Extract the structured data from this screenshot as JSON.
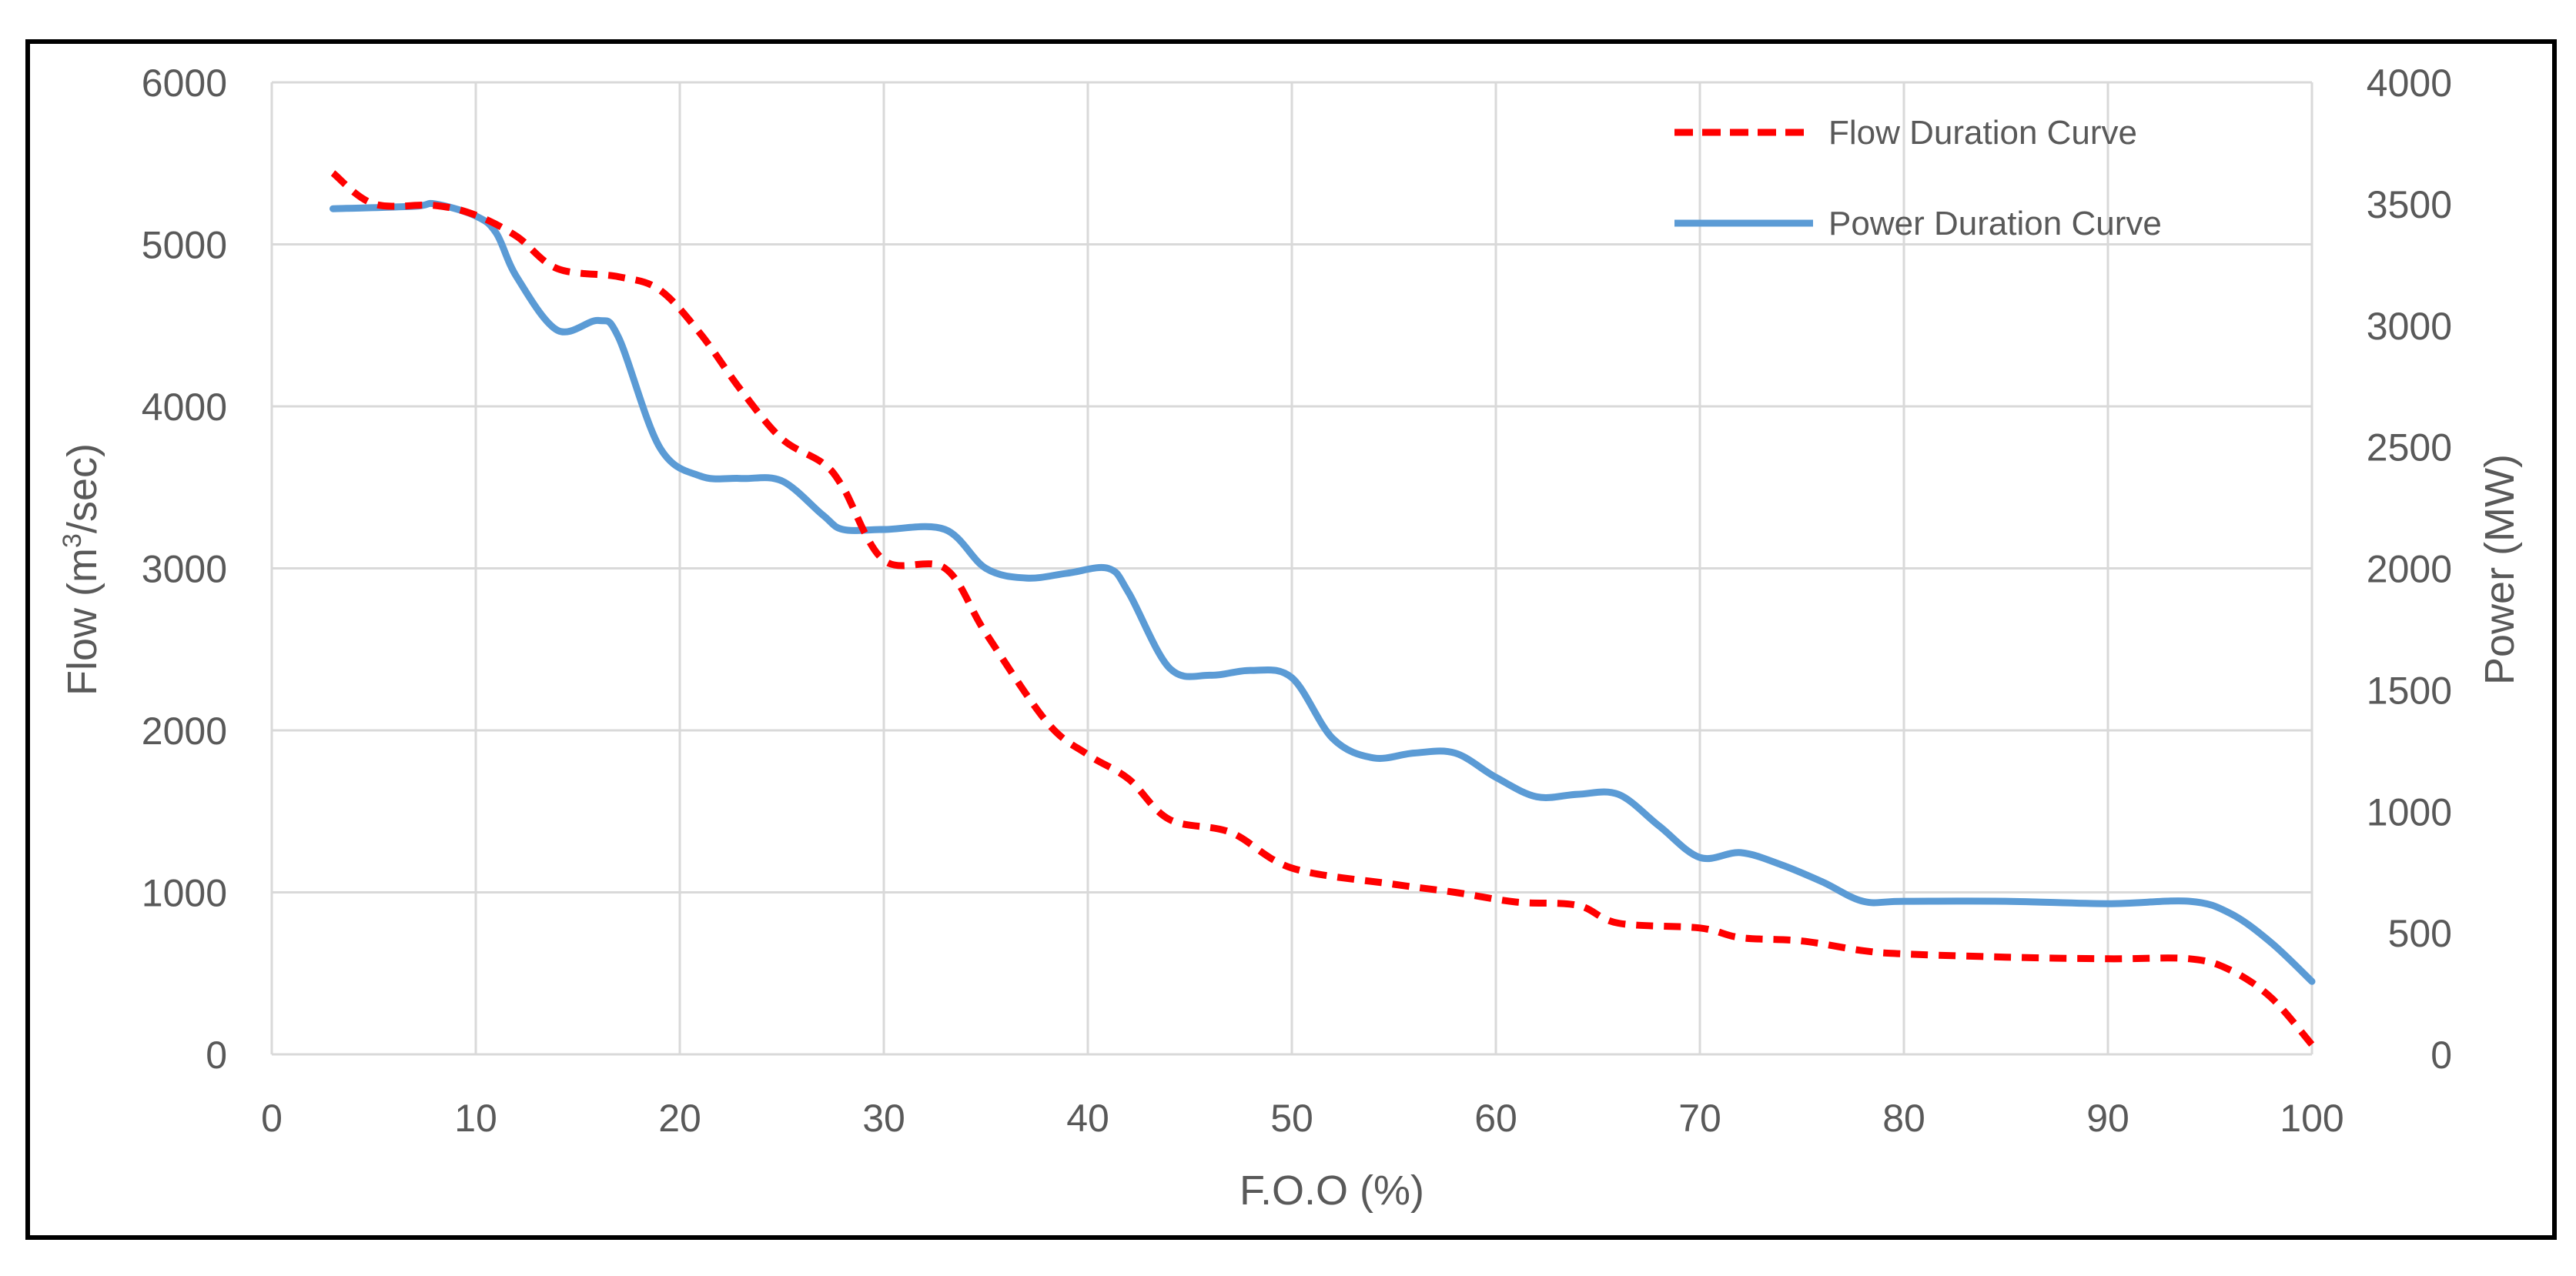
{
  "chart_data": {
    "type": "line",
    "title": "",
    "xlabel": "F.O.O (%)",
    "ylabel": "Flow (m",
    "ylabel_sup": "3",
    "ylabel_tail": "/sec)",
    "y2label": "Power (MW)",
    "xlim": [
      0,
      100
    ],
    "ylim": [
      0,
      6000
    ],
    "y2lim": [
      0,
      4000
    ],
    "xticks": [
      "0",
      "10",
      "20",
      "30",
      "40",
      "50",
      "60",
      "70",
      "80",
      "90",
      "100"
    ],
    "yticks": [
      "0",
      "1000",
      "2000",
      "3000",
      "4000",
      "5000",
      "6000"
    ],
    "y2ticks": [
      "0",
      "500",
      "1000",
      "1500",
      "2000",
      "2500",
      "3000",
      "3500",
      "4000"
    ],
    "grid": true,
    "legend_position": "top-right",
    "series": [
      {
        "name": "Flow Duration Curve",
        "axis": "left",
        "color": "#ff0000",
        "style": "dashed",
        "points": [
          [
            3,
            5440
          ],
          [
            5,
            5250
          ],
          [
            8,
            5240
          ],
          [
            10,
            5180
          ],
          [
            12,
            5050
          ],
          [
            14,
            4850
          ],
          [
            17,
            4800
          ],
          [
            19,
            4720
          ],
          [
            21,
            4450
          ],
          [
            23,
            4100
          ],
          [
            25,
            3800
          ],
          [
            27,
            3650
          ],
          [
            28,
            3500
          ],
          [
            30,
            3050
          ],
          [
            33,
            3000
          ],
          [
            35,
            2600
          ],
          [
            38,
            2050
          ],
          [
            40,
            1850
          ],
          [
            42,
            1700
          ],
          [
            44,
            1450
          ],
          [
            47,
            1370
          ],
          [
            50,
            1150
          ],
          [
            55,
            1050
          ],
          [
            58,
            1000
          ],
          [
            61,
            940
          ],
          [
            64,
            920
          ],
          [
            66,
            810
          ],
          [
            70,
            780
          ],
          [
            72,
            720
          ],
          [
            75,
            700
          ],
          [
            78,
            640
          ],
          [
            80,
            620
          ],
          [
            85,
            600
          ],
          [
            90,
            590
          ],
          [
            94,
            590
          ],
          [
            96,
            520
          ],
          [
            98,
            350
          ],
          [
            100,
            60
          ]
        ]
      },
      {
        "name": "Power Duration Curve",
        "axis": "right",
        "color": "#5b9bd5",
        "style": "solid",
        "points": [
          [
            3,
            3480
          ],
          [
            7,
            3490
          ],
          [
            8,
            3500
          ],
          [
            10,
            3450
          ],
          [
            11,
            3380
          ],
          [
            12,
            3200
          ],
          [
            14,
            2980
          ],
          [
            16,
            3020
          ],
          [
            17,
            2950
          ],
          [
            19,
            2500
          ],
          [
            21,
            2380
          ],
          [
            23,
            2370
          ],
          [
            25,
            2360
          ],
          [
            27,
            2220
          ],
          [
            28,
            2160
          ],
          [
            30,
            2160
          ],
          [
            33,
            2160
          ],
          [
            35,
            2000
          ],
          [
            37,
            1960
          ],
          [
            39,
            1980
          ],
          [
            41,
            2000
          ],
          [
            42,
            1900
          ],
          [
            44,
            1590
          ],
          [
            46,
            1560
          ],
          [
            48,
            1580
          ],
          [
            50,
            1550
          ],
          [
            52,
            1300
          ],
          [
            54,
            1220
          ],
          [
            56,
            1240
          ],
          [
            58,
            1240
          ],
          [
            60,
            1140
          ],
          [
            62,
            1060
          ],
          [
            64,
            1070
          ],
          [
            66,
            1070
          ],
          [
            68,
            940
          ],
          [
            70,
            810
          ],
          [
            72,
            830
          ],
          [
            74,
            780
          ],
          [
            76,
            710
          ],
          [
            78,
            630
          ],
          [
            80,
            630
          ],
          [
            85,
            630
          ],
          [
            90,
            620
          ],
          [
            94,
            630
          ],
          [
            96,
            580
          ],
          [
            98,
            460
          ],
          [
            100,
            300
          ]
        ]
      }
    ]
  }
}
